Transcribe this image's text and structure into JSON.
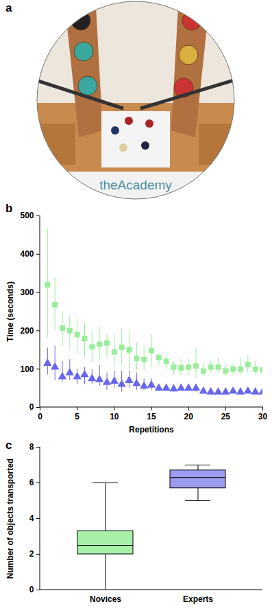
{
  "image": {
    "panel": "a",
    "text": "theAcademy"
  },
  "chart_data": [
    {
      "panel": "b",
      "type": "scatter",
      "xlabel": "Repetitions",
      "ylabel": "Time (seconds)",
      "x": [
        1,
        2,
        3,
        4,
        5,
        6,
        7,
        8,
        9,
        10,
        11,
        12,
        13,
        14,
        15,
        16,
        17,
        18,
        19,
        20,
        21,
        22,
        23,
        24,
        25,
        26,
        27,
        28,
        29,
        30
      ],
      "series": [
        {
          "color": "#99ee99",
          "marker": "square",
          "values": [
            320,
            268,
            207,
            200,
            190,
            180,
            158,
            165,
            168,
            145,
            157,
            150,
            128,
            125,
            148,
            130,
            120,
            105,
            103,
            105,
            108,
            95,
            105,
            105,
            95,
            100,
            100,
            112,
            100,
            98
          ],
          "error_low": [
            180,
            200,
            160,
            150,
            140,
            130,
            115,
            120,
            130,
            110,
            110,
            100,
            95,
            95,
            105,
            110,
            100,
            85,
            85,
            85,
            75,
            80,
            90,
            90,
            80,
            85,
            85,
            90,
            85,
            80
          ],
          "error_high": [
            465,
            340,
            250,
            240,
            230,
            220,
            200,
            210,
            190,
            190,
            205,
            200,
            170,
            160,
            190,
            140,
            140,
            120,
            125,
            130,
            155,
            115,
            120,
            130,
            110,
            115,
            130,
            135,
            120,
            115
          ]
        },
        {
          "color": "#6666ee",
          "marker": "triangle",
          "values": [
            115,
            105,
            80,
            90,
            80,
            85,
            75,
            72,
            65,
            68,
            60,
            70,
            62,
            55,
            58,
            50,
            50,
            48,
            50,
            50,
            50,
            42,
            40,
            40,
            40,
            42,
            40,
            42,
            40,
            40
          ],
          "error_low": [
            85,
            70,
            65,
            70,
            60,
            60,
            60,
            55,
            45,
            50,
            40,
            50,
            45,
            45,
            45,
            45,
            45,
            40,
            45,
            45,
            40,
            38,
            38,
            38,
            38,
            38,
            38,
            38,
            38,
            35
          ],
          "error_high": [
            155,
            160,
            120,
            125,
            100,
            105,
            100,
            110,
            90,
            95,
            95,
            95,
            90,
            75,
            75,
            55,
            55,
            55,
            55,
            60,
            60,
            48,
            45,
            45,
            45,
            48,
            45,
            50,
            45,
            45
          ]
        }
      ],
      "xlim": [
        0,
        30
      ],
      "xticks": [
        0,
        5,
        10,
        15,
        20,
        25,
        30
      ],
      "ylim": [
        0,
        500
      ],
      "yticks": [
        0,
        100,
        200,
        300,
        400,
        500
      ]
    },
    {
      "panel": "c",
      "type": "box",
      "ylabel": "Number of objects transported",
      "categories": [
        "Novices",
        "Experts"
      ],
      "min": [
        0,
        5
      ],
      "q1": [
        2,
        5.7
      ],
      "median": [
        2.5,
        6.3
      ],
      "q3": [
        3.3,
        6.7
      ],
      "max": [
        6,
        7
      ],
      "colors": [
        "#a8f0a8",
        "#9b9bf0"
      ],
      "ylim": [
        0,
        8
      ],
      "yticks": [
        0,
        2,
        4,
        6,
        8
      ]
    }
  ]
}
